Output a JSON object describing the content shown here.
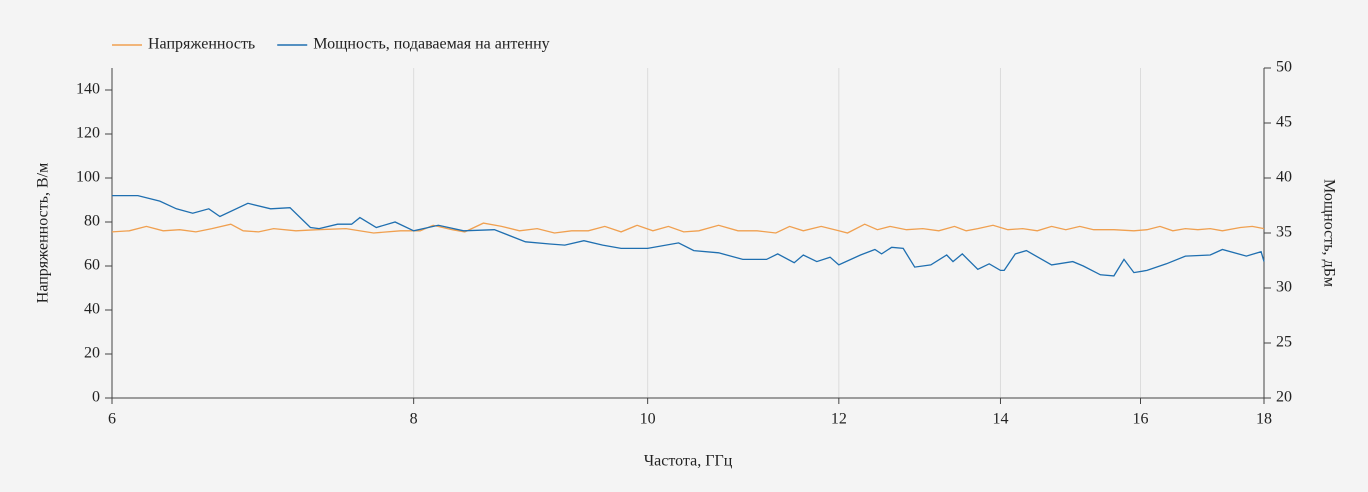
{
  "chart_data": {
    "type": "line",
    "xlabel": "Частота, ГГц",
    "ylabel": "Напряженность, В/м",
    "y2label": "Мощность, дБм",
    "xscale": "log",
    "xlim": [
      6,
      18
    ],
    "xticks": [
      6,
      8,
      10,
      12,
      14,
      16,
      18
    ],
    "ylim": [
      0,
      150
    ],
    "yticks": [
      0,
      20,
      40,
      60,
      80,
      100,
      120,
      140
    ],
    "y2lim": [
      20,
      50
    ],
    "y2ticks": [
      20,
      25,
      30,
      35,
      40,
      45,
      50
    ],
    "grid": "x",
    "legend": "top-left",
    "series": [
      {
        "name": "Напряженность",
        "color": "#f0a050",
        "x": [
          6.0,
          6.1,
          6.2,
          6.3,
          6.4,
          6.5,
          6.6,
          6.72,
          6.8,
          6.9,
          7.0,
          7.15,
          7.3,
          7.5,
          7.7,
          7.9,
          8.05,
          8.15,
          8.3,
          8.4,
          8.55,
          8.7,
          8.85,
          9.0,
          9.15,
          9.3,
          9.45,
          9.6,
          9.75,
          9.9,
          10.05,
          10.2,
          10.35,
          10.5,
          10.7,
          10.9,
          11.1,
          11.3,
          11.45,
          11.6,
          11.8,
          12.0,
          12.1,
          12.3,
          12.45,
          12.6,
          12.8,
          13.0,
          13.2,
          13.4,
          13.55,
          13.7,
          13.9,
          14.1,
          14.3,
          14.5,
          14.7,
          14.9,
          15.1,
          15.3,
          15.6,
          15.9,
          16.1,
          16.3,
          16.5,
          16.7,
          16.9,
          17.1,
          17.3,
          17.6,
          17.8,
          18.0
        ],
        "values": [
          75.5,
          76,
          78,
          76,
          76.5,
          75.5,
          77,
          79,
          76,
          75.5,
          77,
          76,
          76.5,
          77,
          75,
          76,
          76,
          78.5,
          76.5,
          75.5,
          79.5,
          78,
          76,
          77,
          75,
          76,
          76,
          78,
          75.5,
          78.5,
          76,
          78,
          75.5,
          76,
          78.5,
          76,
          76,
          75,
          78,
          76,
          78,
          76,
          75,
          79,
          76.5,
          78,
          76.5,
          77,
          76,
          78,
          76,
          77,
          78.5,
          76.5,
          77,
          76,
          78,
          76.5,
          78,
          76.5,
          76.5,
          76,
          76.5,
          78,
          76,
          77,
          76.5,
          77,
          76,
          77.5,
          78,
          77
        ]
      },
      {
        "name": "Мощность, подаваемая на антенну",
        "color": "#1f6fb0",
        "axis": "y2",
        "x": [
          6.0,
          6.15,
          6.28,
          6.38,
          6.48,
          6.58,
          6.65,
          6.83,
          6.98,
          7.11,
          7.25,
          7.31,
          7.44,
          7.54,
          7.6,
          7.72,
          7.86,
          8.0,
          8.19,
          8.39,
          8.64,
          8.9,
          9.11,
          9.24,
          9.41,
          9.58,
          9.75,
          10.0,
          10.3,
          10.45,
          10.7,
          10.95,
          11.2,
          11.32,
          11.5,
          11.6,
          11.75,
          11.9,
          12.0,
          12.25,
          12.42,
          12.5,
          12.62,
          12.76,
          12.9,
          13.1,
          13.3,
          13.38,
          13.5,
          13.7,
          13.85,
          14.0,
          14.05,
          14.2,
          14.35,
          14.7,
          15.0,
          15.15,
          15.4,
          15.6,
          15.75,
          15.9,
          16.1,
          16.4,
          16.7,
          17.1,
          17.3,
          17.7,
          17.95,
          18.0
        ],
        "values": [
          38.4,
          38.4,
          37.9,
          37.2,
          36.8,
          37.2,
          36.5,
          37.7,
          37.2,
          37.3,
          35.5,
          35.4,
          35.8,
          35.8,
          36.4,
          35.5,
          36.0,
          35.2,
          35.7,
          35.2,
          35.3,
          34.2,
          34.0,
          33.9,
          34.3,
          33.9,
          33.6,
          33.6,
          34.1,
          33.4,
          33.2,
          32.6,
          32.6,
          33.1,
          32.3,
          33.0,
          32.4,
          32.8,
          32.1,
          33.0,
          33.5,
          33.1,
          33.7,
          33.6,
          31.9,
          32.1,
          33.0,
          32.4,
          33.1,
          31.7,
          32.2,
          31.6,
          31.6,
          33.1,
          33.4,
          32.1,
          32.4,
          32.0,
          31.2,
          31.1,
          32.6,
          31.4,
          31.6,
          32.2,
          32.9,
          33.0,
          33.5,
          32.9,
          33.3,
          32.4
        ]
      }
    ]
  }
}
